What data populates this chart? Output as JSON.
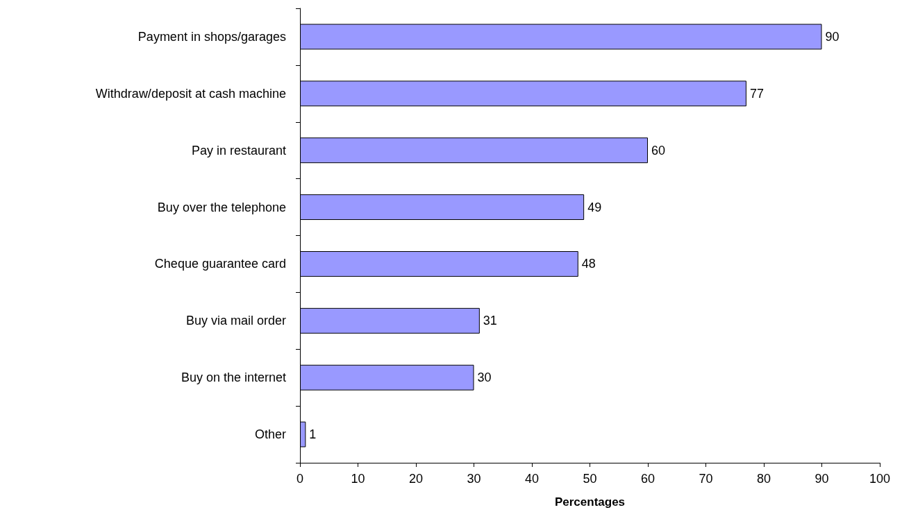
{
  "chart_data": {
    "type": "bar",
    "orientation": "horizontal",
    "xlabel": "Percentages",
    "categories": [
      "Payment in shops/garages",
      "Withdraw/deposit at cash machine",
      "Pay in restaurant",
      "Buy over the telephone",
      "Cheque guarantee card",
      "Buy via mail order",
      "Buy on the internet",
      "Other"
    ],
    "values": [
      90,
      77,
      60,
      49,
      48,
      31,
      30,
      1
    ],
    "color": "#9999ff",
    "xlim": [
      0,
      100
    ],
    "xticks": [
      0,
      10,
      20,
      30,
      40,
      50,
      60,
      70,
      80,
      90,
      100
    ],
    "data_labels": true
  }
}
